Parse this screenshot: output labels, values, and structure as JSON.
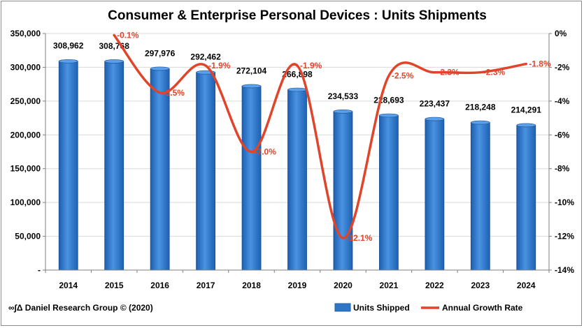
{
  "chart_data": {
    "type": "bar",
    "title": "Consumer & Enterprise Personal Devices : Units Shipments",
    "categories": [
      "2014",
      "2015",
      "2016",
      "2017",
      "2018",
      "2019",
      "2020",
      "2021",
      "2022",
      "2023",
      "2024"
    ],
    "series": [
      {
        "name": "Units Shipped",
        "type": "bar",
        "axis": "left",
        "values": [
          308962,
          308768,
          297976,
          292462,
          272104,
          266898,
          234533,
          228693,
          223437,
          218248,
          214291
        ],
        "labels": [
          "308,962",
          "308,768",
          "297,976",
          "292,462",
          "272,104",
          "266,898",
          "234,533",
          "228,693",
          "223,437",
          "218,248",
          "214,291"
        ],
        "color": "#2e75c8"
      },
      {
        "name": "Annual Growth Rate",
        "type": "line",
        "axis": "right",
        "values": [
          null,
          -0.1,
          -3.5,
          -1.9,
          -7.0,
          -1.9,
          -12.1,
          -2.5,
          -2.3,
          -2.3,
          -1.8
        ],
        "labels": [
          "",
          "-0.1%",
          "-3.5%",
          "-1.9%",
          "-7.0%",
          "-1.9%",
          "-12.1%",
          "-2.5%",
          "-2.3%",
          "-2.3%",
          "-1.8%"
        ],
        "color": "#e0442a"
      }
    ],
    "y_left": {
      "min": 0,
      "max": 350000,
      "ticks": [
        0,
        50000,
        100000,
        150000,
        200000,
        250000,
        300000,
        350000
      ],
      "tick_labels": [
        "-",
        "50,000",
        "100,000",
        "150,000",
        "200,000",
        "250,000",
        "300,000",
        "350,000"
      ]
    },
    "y_right": {
      "min": -14,
      "max": 0,
      "ticks": [
        0,
        -2,
        -4,
        -6,
        -8,
        -10,
        -12,
        -14
      ],
      "tick_labels": [
        "0%",
        "-2%",
        "-4%",
        "-6%",
        "-8%",
        "-10%",
        "-12%",
        "-14%"
      ]
    },
    "grid": true,
    "legend_position": "bottom-right"
  },
  "footer": {
    "credit": "∞∫Δ Daniel Research Group © (2020)"
  }
}
